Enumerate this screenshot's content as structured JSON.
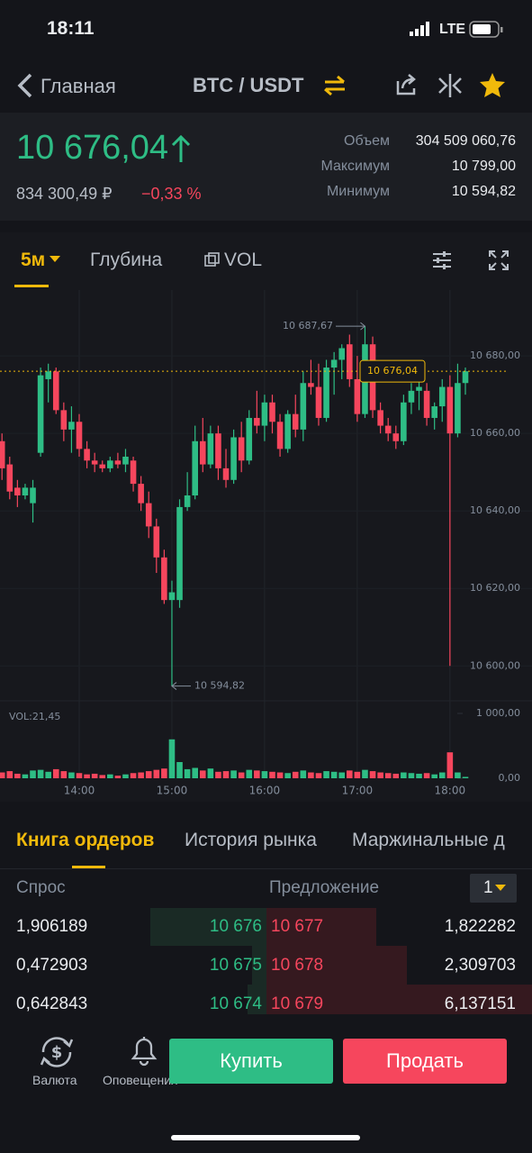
{
  "status_bar": {
    "time": "18:11",
    "network": "LTE"
  },
  "nav": {
    "back": "Главная",
    "pair": "BTC / USDT"
  },
  "ticker": {
    "price": "10 676,04",
    "price_rub": "834 300,49 ₽",
    "change": "−0,33 %",
    "stats": [
      {
        "label": "Объем",
        "value": "304 509 060,76"
      },
      {
        "label": "Максимум",
        "value": "10 799,00"
      },
      {
        "label": "Минимум",
        "value": "10 594,82"
      }
    ]
  },
  "chart_tabs": {
    "interval": "5м",
    "depth": "Глубина",
    "vol": "VOL"
  },
  "chart": {
    "type": "candlestick",
    "ylim": [
      10591,
      10697
    ],
    "yticks": [
      {
        "value": 10680,
        "label": "10 680,00"
      },
      {
        "value": 10660,
        "label": "10 660,00"
      },
      {
        "value": 10640,
        "label": "10 640,00"
      },
      {
        "value": 10620,
        "label": "10 620,00"
      },
      {
        "value": 10600,
        "label": "10 600,00"
      }
    ],
    "xticks": [
      "14:00",
      "15:00",
      "16:00",
      "17:00",
      "18:00"
    ],
    "high_label": "10 687,67",
    "low_label": "10 594,82",
    "last_label": "10 676,04",
    "up_color": "#2ebd85",
    "down_color": "#f6465d",
    "candles": [
      {
        "o": 10658,
        "h": 10660,
        "l": 10648,
        "c": 10651
      },
      {
        "o": 10652,
        "h": 10654,
        "l": 10643,
        "c": 10645
      },
      {
        "o": 10646,
        "h": 10648,
        "l": 10641,
        "c": 10644
      },
      {
        "o": 10644,
        "h": 10647,
        "l": 10643,
        "c": 10646
      },
      {
        "o": 10642,
        "h": 10648,
        "l": 10637,
        "c": 10646
      },
      {
        "o": 10655,
        "h": 10677,
        "l": 10654,
        "c": 10675
      },
      {
        "o": 10674,
        "h": 10678,
        "l": 10668,
        "c": 10676
      },
      {
        "o": 10676,
        "h": 10677,
        "l": 10665,
        "c": 10666
      },
      {
        "o": 10666,
        "h": 10668,
        "l": 10658,
        "c": 10661
      },
      {
        "o": 10661,
        "h": 10667,
        "l": 10655,
        "c": 10663
      },
      {
        "o": 10663,
        "h": 10665,
        "l": 10654,
        "c": 10656
      },
      {
        "o": 10656,
        "h": 10658,
        "l": 10651,
        "c": 10653
      },
      {
        "o": 10653,
        "h": 10655,
        "l": 10650,
        "c": 10652
      },
      {
        "o": 10652,
        "h": 10653,
        "l": 10650,
        "c": 10651
      },
      {
        "o": 10651,
        "h": 10654,
        "l": 10650,
        "c": 10653
      },
      {
        "o": 10653,
        "h": 10655,
        "l": 10651,
        "c": 10652
      },
      {
        "o": 10652,
        "h": 10656,
        "l": 10650,
        "c": 10654
      },
      {
        "o": 10653,
        "h": 10654,
        "l": 10645,
        "c": 10647
      },
      {
        "o": 10647,
        "h": 10649,
        "l": 10640,
        "c": 10642
      },
      {
        "o": 10642,
        "h": 10645,
        "l": 10633,
        "c": 10636
      },
      {
        "o": 10636,
        "h": 10638,
        "l": 10624,
        "c": 10628
      },
      {
        "o": 10628,
        "h": 10630,
        "l": 10616,
        "c": 10617
      },
      {
        "o": 10617,
        "h": 10622,
        "l": 10594.82,
        "c": 10619
      },
      {
        "o": 10617,
        "h": 10643,
        "l": 10615,
        "c": 10641
      },
      {
        "o": 10641,
        "h": 10650,
        "l": 10640,
        "c": 10644
      },
      {
        "o": 10644,
        "h": 10662,
        "l": 10643,
        "c": 10658
      },
      {
        "o": 10658,
        "h": 10664,
        "l": 10650,
        "c": 10652
      },
      {
        "o": 10652,
        "h": 10662,
        "l": 10651,
        "c": 10660
      },
      {
        "o": 10660,
        "h": 10662,
        "l": 10648,
        "c": 10651
      },
      {
        "o": 10651,
        "h": 10656,
        "l": 10646,
        "c": 10648
      },
      {
        "o": 10648,
        "h": 10661,
        "l": 10647,
        "c": 10659
      },
      {
        "o": 10659,
        "h": 10663,
        "l": 10650,
        "c": 10653
      },
      {
        "o": 10653,
        "h": 10666,
        "l": 10652,
        "c": 10664
      },
      {
        "o": 10664,
        "h": 10671,
        "l": 10660,
        "c": 10662
      },
      {
        "o": 10662,
        "h": 10670,
        "l": 10658,
        "c": 10668
      },
      {
        "o": 10668,
        "h": 10670,
        "l": 10660,
        "c": 10663
      },
      {
        "o": 10663,
        "h": 10665,
        "l": 10654,
        "c": 10656
      },
      {
        "o": 10656,
        "h": 10666,
        "l": 10655,
        "c": 10665
      },
      {
        "o": 10665,
        "h": 10670,
        "l": 10659,
        "c": 10661
      },
      {
        "o": 10661,
        "h": 10676,
        "l": 10658,
        "c": 10673
      },
      {
        "o": 10673,
        "h": 10679,
        "l": 10670,
        "c": 10672
      },
      {
        "o": 10672,
        "h": 10678,
        "l": 10662,
        "c": 10664
      },
      {
        "o": 10664,
        "h": 10679,
        "l": 10663,
        "c": 10677
      },
      {
        "o": 10677,
        "h": 10681,
        "l": 10670,
        "c": 10679
      },
      {
        "o": 10679,
        "h": 10683,
        "l": 10674,
        "c": 10682
      },
      {
        "o": 10683,
        "h": 10685.5,
        "l": 10672,
        "c": 10674
      },
      {
        "o": 10674,
        "h": 10680,
        "l": 10663,
        "c": 10665
      },
      {
        "o": 10665,
        "h": 10687.67,
        "l": 10664,
        "c": 10683
      },
      {
        "o": 10683,
        "h": 10685,
        "l": 10664,
        "c": 10666
      },
      {
        "o": 10666,
        "h": 10668,
        "l": 10660,
        "c": 10662
      },
      {
        "o": 10662,
        "h": 10664,
        "l": 10658,
        "c": 10660
      },
      {
        "o": 10660,
        "h": 10662,
        "l": 10656,
        "c": 10658
      },
      {
        "o": 10658,
        "h": 10670,
        "l": 10657,
        "c": 10668
      },
      {
        "o": 10668,
        "h": 10673,
        "l": 10665,
        "c": 10671
      },
      {
        "o": 10671,
        "h": 10674,
        "l": 10666,
        "c": 10672
      },
      {
        "o": 10671,
        "h": 10673,
        "l": 10662,
        "c": 10664
      },
      {
        "o": 10664,
        "h": 10668,
        "l": 10661,
        "c": 10667
      },
      {
        "o": 10667,
        "h": 10674,
        "l": 10663,
        "c": 10672
      },
      {
        "o": 10672,
        "h": 10675,
        "l": 10600,
        "c": 10660
      },
      {
        "o": 10660,
        "h": 10678,
        "l": 10659,
        "c": 10673
      },
      {
        "o": 10673,
        "h": 10677,
        "l": 10670,
        "c": 10676.04
      }
    ],
    "volume_label": "VOL:21,45",
    "volume_ylim": [
      0,
      1200
    ],
    "volume_ticks": [
      {
        "value": 1000,
        "label": "1 000,00"
      },
      {
        "value": 0,
        "label": "0,00"
      }
    ],
    "volumes": [
      90,
      110,
      70,
      60,
      120,
      130,
      100,
      140,
      110,
      90,
      80,
      60,
      70,
      50,
      60,
      40,
      60,
      80,
      90,
      110,
      130,
      150,
      600,
      250,
      140,
      160,
      120,
      150,
      100,
      110,
      120,
      90,
      130,
      120,
      110,
      100,
      90,
      80,
      100,
      120,
      90,
      80,
      110,
      100,
      90,
      120,
      100,
      130,
      110,
      90,
      80,
      70,
      90,
      80,
      70,
      80,
      60,
      90,
      400,
      90,
      21.45
    ]
  },
  "order_book": {
    "tabs": [
      "Книга ордеров",
      "История рынка",
      "Маржинальные д"
    ],
    "bid_header": "Спрос",
    "ask_header": "Предложение",
    "precision": "1",
    "rows": [
      [
        "1,906189",
        "10 676",
        "10 677",
        "1,822282"
      ],
      [
        "0,472903",
        "10 675",
        "10 678",
        "2,309703"
      ],
      [
        "0,642843",
        "10 674",
        "10 679",
        "6,137151"
      ]
    ]
  },
  "bottom_bar": {
    "currency": "Валюта",
    "alerts": "Оповещения",
    "buy": "Купить",
    "sell": "Продать"
  }
}
